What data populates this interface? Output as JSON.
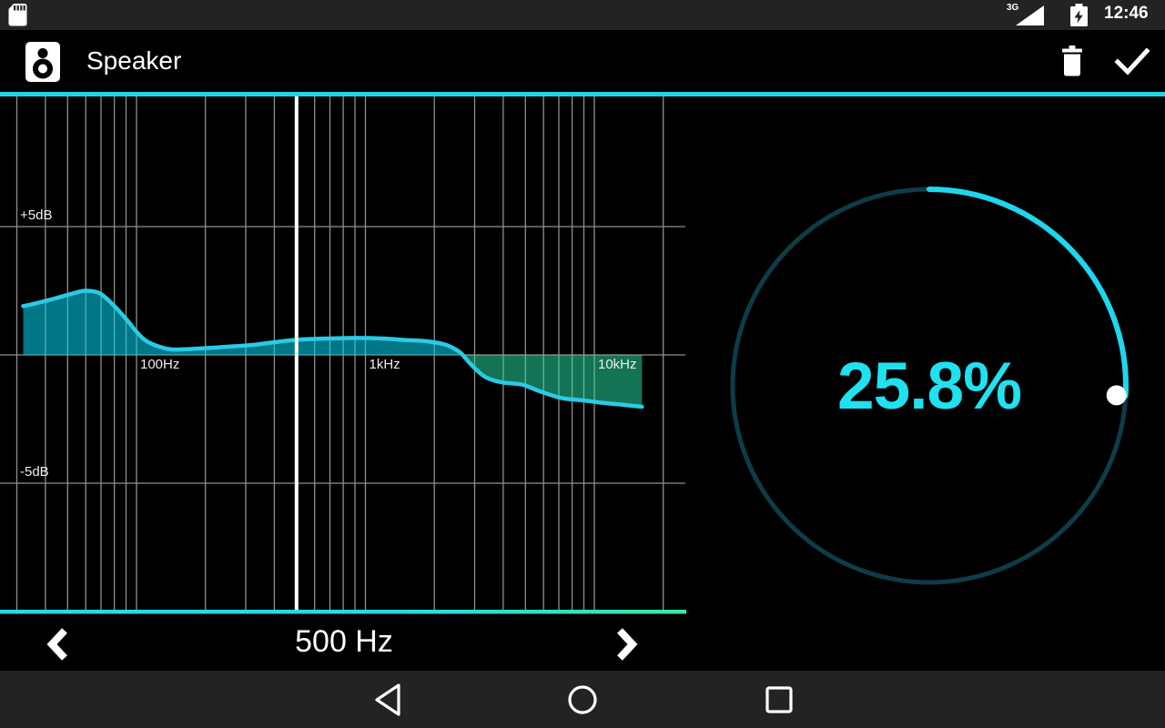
{
  "status_bar": {
    "time": "12:46",
    "network": "3G",
    "icons": [
      "sd-card-icon",
      "cellular-signal-icon",
      "battery-charging-icon"
    ]
  },
  "app_bar": {
    "title": "Speaker",
    "actions": [
      "delete",
      "confirm"
    ]
  },
  "chart_data": {
    "type": "line",
    "title": "Speaker frequency response curve (gain dB vs frequency Hz, log scale)",
    "x_axis": {
      "scale": "log",
      "unit": "Hz",
      "ticks": [
        {
          "f": 100,
          "label": "100Hz"
        },
        {
          "f": 1000,
          "label": "1kHz"
        },
        {
          "f": 10000,
          "label": "10kHz"
        }
      ],
      "gridline_freqs": [
        30,
        40,
        50,
        60,
        70,
        80,
        90,
        100,
        200,
        300,
        400,
        600,
        700,
        800,
        900,
        1000,
        2000,
        3000,
        4000,
        5000,
        6000,
        7000,
        8000,
        9000,
        10000,
        20000
      ]
    },
    "y_axis": {
      "unit": "dB",
      "ticks": [
        {
          "db": 5,
          "label": "+5dB"
        },
        {
          "db": -5,
          "label": "-5dB"
        }
      ],
      "gridlines_db": [
        5,
        0,
        -5
      ]
    },
    "cursor_hz": 500,
    "series": [
      {
        "name": "response",
        "points_hz_db": [
          [
            32,
            1.9
          ],
          [
            36,
            2.0
          ],
          [
            44,
            2.2
          ],
          [
            53,
            2.4
          ],
          [
            60,
            2.5
          ],
          [
            69,
            2.4
          ],
          [
            79,
            1.95
          ],
          [
            91,
            1.35
          ],
          [
            100,
            0.9
          ],
          [
            110,
            0.55
          ],
          [
            126,
            0.32
          ],
          [
            144,
            0.21
          ],
          [
            190,
            0.25
          ],
          [
            250,
            0.32
          ],
          [
            330,
            0.4
          ],
          [
            430,
            0.53
          ],
          [
            520,
            0.6
          ],
          [
            680,
            0.64
          ],
          [
            900,
            0.66
          ],
          [
            1180,
            0.64
          ],
          [
            1550,
            0.57
          ],
          [
            1870,
            0.53
          ],
          [
            2250,
            0.39
          ],
          [
            2580,
            0.11
          ],
          [
            2830,
            -0.28
          ],
          [
            3100,
            -0.64
          ],
          [
            3390,
            -0.89
          ],
          [
            3900,
            -1.06
          ],
          [
            4490,
            -1.12
          ],
          [
            4910,
            -1.17
          ],
          [
            5620,
            -1.38
          ],
          [
            6440,
            -1.56
          ],
          [
            7370,
            -1.7
          ],
          [
            8880,
            -1.77
          ],
          [
            10700,
            -1.86
          ],
          [
            12900,
            -1.93
          ],
          [
            16150,
            -2.02
          ]
        ]
      }
    ],
    "legend": null,
    "grid": true
  },
  "freq_selector": {
    "value": "500 Hz",
    "prev_icon": "chevron-left-icon",
    "next_icon": "chevron-right-icon"
  },
  "dial": {
    "percent": 25.8,
    "label": "25.8%"
  },
  "nav_bar": {
    "icons": [
      "back-icon",
      "home-icon",
      "recents-icon"
    ]
  },
  "colors": {
    "accent_cyan": "#21d5e7",
    "curve": "#29cbe5",
    "boost_fill": "rgba(0,215,245,0.55)",
    "cut_fill": "rgba(40,230,170,0.50)",
    "grid": "#8f8f8f",
    "cursor": "#ffffff",
    "baseline_left": "#29d8e6",
    "baseline_right": "#38e8a3",
    "dial_track": "#0e3c48",
    "dial_arc": "#1ed7ee",
    "dial_text": "#1fe1f0",
    "label_text": "#eeeeee"
  }
}
